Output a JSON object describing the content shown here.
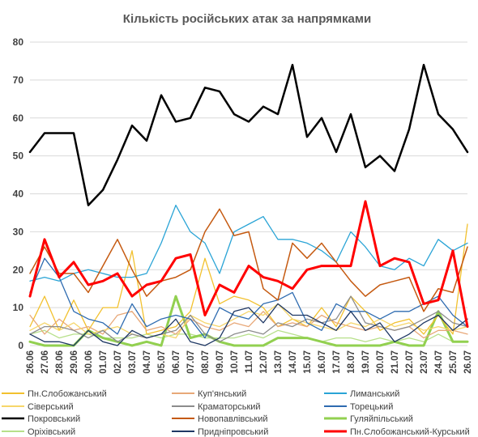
{
  "chart_data": {
    "type": "line",
    "title": "Кількість російських атак за напрямками",
    "xlabel": "",
    "ylabel": "",
    "ylim": [
      0,
      80
    ],
    "yticks": [
      0,
      10,
      20,
      30,
      40,
      50,
      60,
      70,
      80
    ],
    "grid": true,
    "legend_position": "bottom",
    "x": [
      "26.06",
      "27.06",
      "28.06",
      "29.06",
      "30.06",
      "01.07",
      "02.07",
      "03.07",
      "04.07",
      "05.07",
      "06.07",
      "07.07",
      "08.07",
      "09.07",
      "10.07",
      "11.07",
      "12.07",
      "13.07",
      "14.07",
      "15.07",
      "16.07",
      "17.07",
      "18.07",
      "19.07",
      "20.07",
      "21.07",
      "22.07",
      "23.07",
      "24.07",
      "25.07",
      "26.07"
    ],
    "series": [
      {
        "name": "Пн.Слобожанський",
        "color": "#f2c12e",
        "width": 1.3,
        "values": [
          5,
          13,
          4,
          12,
          4,
          10,
          10,
          25,
          3,
          4,
          5,
          9,
          23,
          11,
          13,
          12,
          10,
          5,
          7,
          5,
          10,
          5,
          13,
          9,
          4,
          6,
          7,
          3,
          8,
          3,
          32
        ]
      },
      {
        "name": "Куп'янський",
        "color": "#e8a878",
        "width": 1.3,
        "values": [
          8,
          3,
          7,
          4,
          5,
          3,
          8,
          9,
          4,
          5,
          3,
          7,
          5,
          4,
          6,
          5,
          9,
          5,
          6,
          5,
          8,
          6,
          5,
          4,
          5,
          4,
          5,
          2,
          4,
          4,
          3
        ]
      },
      {
        "name": "Лиманський",
        "color": "#2aa4d6",
        "width": 1.3,
        "values": [
          17,
          18,
          17,
          19,
          20,
          19,
          18,
          18,
          19,
          27,
          37,
          30,
          27,
          19,
          30,
          32,
          34,
          28,
          28,
          27,
          25,
          22,
          30,
          26,
          21,
          20,
          23,
          21,
          28,
          25,
          27
        ]
      },
      {
        "name": "Сіверський",
        "color": "#f6d66a",
        "width": 1.3,
        "values": [
          4,
          6,
          4,
          6,
          3,
          4,
          5,
          3,
          2,
          3,
          2,
          8,
          6,
          5,
          7,
          9,
          8,
          11,
          7,
          6,
          5,
          4,
          6,
          5,
          7,
          5,
          6,
          4,
          5,
          4,
          5
        ]
      },
      {
        "name": "Краматорський",
        "color": "#8c8c8c",
        "width": 1.3,
        "values": [
          3,
          5,
          5,
          4,
          2,
          4,
          1,
          3,
          2,
          3,
          4,
          8,
          3,
          1,
          3,
          4,
          3,
          6,
          5,
          7,
          6,
          7,
          13,
          6,
          5,
          4,
          5,
          7,
          9,
          6,
          5
        ]
      },
      {
        "name": "Торецький",
        "color": "#2e6bb0",
        "width": 1.3,
        "values": [
          14,
          23,
          18,
          9,
          7,
          6,
          3,
          11,
          5,
          7,
          8,
          7,
          2,
          10,
          8,
          7,
          11,
          12,
          14,
          6,
          4,
          11,
          9,
          9,
          7,
          9,
          9,
          11,
          13,
          8,
          5
        ]
      },
      {
        "name": "Покровський",
        "color": "#000000",
        "width": 2.5,
        "values": [
          51,
          56,
          56,
          56,
          37,
          41,
          49,
          58,
          54,
          66,
          59,
          60,
          68,
          67,
          61,
          59,
          63,
          61,
          74,
          55,
          60,
          51,
          61,
          47,
          50,
          46,
          57,
          74,
          61,
          57,
          51
        ]
      },
      {
        "name": "Новопавлівський",
        "color": "#c55a11",
        "width": 1.5,
        "values": [
          19,
          26,
          19,
          19,
          14,
          21,
          28,
          20,
          13,
          17,
          18,
          20,
          30,
          36,
          29,
          30,
          15,
          12,
          27,
          23,
          27,
          22,
          17,
          13,
          16,
          17,
          18,
          9,
          15,
          14,
          26
        ]
      },
      {
        "name": "Гуляйпільський",
        "color": "#92d050",
        "width": 3,
        "values": [
          1,
          0,
          0,
          0,
          4,
          2,
          1,
          0,
          1,
          0,
          13,
          2,
          3,
          1,
          0,
          0,
          0,
          2,
          2,
          2,
          1,
          0,
          0,
          0,
          0,
          1,
          0,
          0,
          9,
          1,
          1
        ]
      },
      {
        "name": "Оріхівський",
        "color": "#b7e08a",
        "width": 1.3,
        "values": [
          3,
          4,
          2,
          3,
          3,
          2,
          2,
          2,
          3,
          2,
          3,
          3,
          2,
          2,
          2,
          3,
          2,
          4,
          3,
          2,
          1,
          2,
          2,
          1,
          2,
          1,
          2,
          1,
          3,
          1,
          1
        ]
      },
      {
        "name": "Придніпровський",
        "color": "#1f3864",
        "width": 1.3,
        "values": [
          3,
          1,
          1,
          0,
          4,
          1,
          0,
          4,
          2,
          3,
          7,
          1,
          0,
          2,
          9,
          10,
          6,
          11,
          8,
          8,
          6,
          4,
          9,
          4,
          6,
          1,
          3,
          6,
          8,
          4,
          7
        ]
      },
      {
        "name": "Пн.Слобожанський-Курський",
        "color": "#ff0000",
        "width": 3,
        "values": [
          13,
          28,
          18,
          22,
          16,
          17,
          19,
          13,
          16,
          17,
          23,
          24,
          8,
          16,
          14,
          21,
          18,
          17,
          15,
          20,
          21,
          21,
          21,
          38,
          21,
          23,
          22,
          11,
          12,
          25,
          5
        ]
      }
    ]
  }
}
